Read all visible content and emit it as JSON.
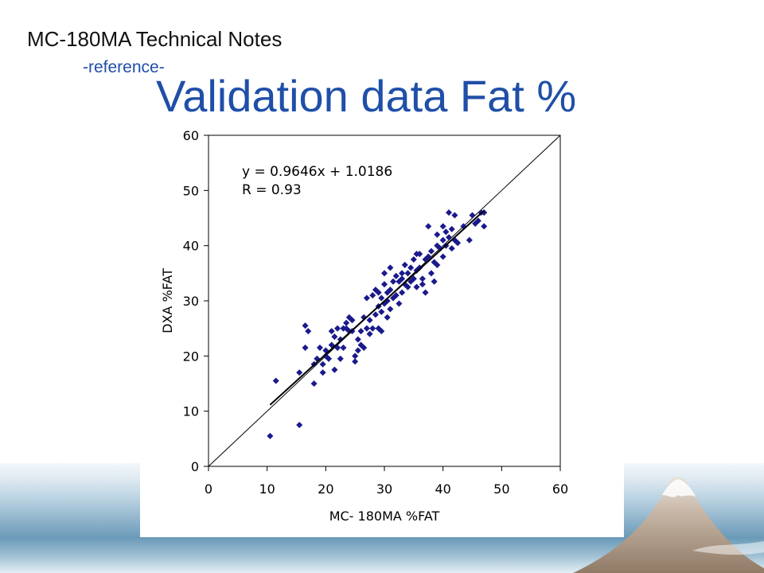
{
  "deck_title": "MC-180MA  Technical Notes",
  "deck_subtitle": "-reference-",
  "slide_title": "Validation data  Fat %",
  "colors": {
    "title_blue": "#1f4fa8",
    "marker": "#1a1a8c"
  },
  "chart_data": {
    "type": "scatter",
    "title": "",
    "xlabel": "MC- 180MA %FAT",
    "ylabel": "DXA %FAT",
    "xlim": [
      0,
      60
    ],
    "ylim": [
      0,
      60
    ],
    "xticks": [
      "0",
      "10",
      "20",
      "30",
      "40",
      "50",
      "60"
    ],
    "yticks": [
      "0",
      "10",
      "20",
      "30",
      "40",
      "50",
      "60"
    ],
    "grid": false,
    "annotations": [
      "y = 0.9646x + 1.0186",
      "R = 0.93"
    ],
    "trendline": {
      "slope": 0.9646,
      "intercept": 1.0186,
      "x_range": [
        10.5,
        47
      ]
    },
    "identity_line": {
      "from": [
        0,
        0
      ],
      "to": [
        60,
        60
      ]
    },
    "points": [
      [
        10.5,
        5.5
      ],
      [
        15.5,
        7.5
      ],
      [
        11.5,
        15.5
      ],
      [
        15.5,
        17
      ],
      [
        16.5,
        21.5
      ],
      [
        16.5,
        25.5
      ],
      [
        17,
        24.5
      ],
      [
        18,
        15
      ],
      [
        18,
        18.5
      ],
      [
        18.5,
        19.5
      ],
      [
        19,
        21.5
      ],
      [
        19.5,
        17
      ],
      [
        19.5,
        18.5
      ],
      [
        20,
        20
      ],
      [
        20,
        21
      ],
      [
        20.5,
        19.5
      ],
      [
        21,
        22
      ],
      [
        21,
        24.5
      ],
      [
        21.5,
        17.5
      ],
      [
        21.5,
        23.5
      ],
      [
        22,
        25
      ],
      [
        22,
        21.5
      ],
      [
        22.5,
        19.5
      ],
      [
        22.5,
        23
      ],
      [
        23,
        25
      ],
      [
        23,
        21.5
      ],
      [
        23.5,
        26
      ],
      [
        23.5,
        25
      ],
      [
        24,
        27
      ],
      [
        24,
        24.5
      ],
      [
        24.5,
        26.5
      ],
      [
        24.5,
        24.5
      ],
      [
        25,
        20
      ],
      [
        25,
        19
      ],
      [
        25.5,
        21
      ],
      [
        25.5,
        23
      ],
      [
        26,
        22
      ],
      [
        26,
        24.5
      ],
      [
        26.5,
        21.5
      ],
      [
        26.5,
        27
      ],
      [
        27,
        25
      ],
      [
        27,
        30.5
      ],
      [
        27.5,
        24
      ],
      [
        27.5,
        26.5
      ],
      [
        28,
        25
      ],
      [
        28,
        31
      ],
      [
        28.5,
        32
      ],
      [
        28.5,
        27.5
      ],
      [
        29,
        29
      ],
      [
        29,
        25
      ],
      [
        29,
        31.5
      ],
      [
        29.5,
        30.5
      ],
      [
        29.5,
        28
      ],
      [
        29.5,
        24.5
      ],
      [
        30,
        29.5
      ],
      [
        30,
        33
      ],
      [
        30,
        35
      ],
      [
        30.5,
        30
      ],
      [
        30.5,
        31.5
      ],
      [
        30.5,
        27
      ],
      [
        31,
        36
      ],
      [
        31,
        32
      ],
      [
        31,
        28.5
      ],
      [
        31.5,
        30.5
      ],
      [
        31.5,
        33.5
      ],
      [
        32,
        31
      ],
      [
        32,
        34.5
      ],
      [
        32.5,
        33.5
      ],
      [
        32.5,
        29.5
      ],
      [
        33,
        35
      ],
      [
        33,
        31.5
      ],
      [
        33,
        34
      ],
      [
        33.5,
        33
      ],
      [
        33.5,
        36.5
      ],
      [
        34,
        35
      ],
      [
        34,
        32.5
      ],
      [
        34.5,
        36
      ],
      [
        34.5,
        33.5
      ],
      [
        35,
        37.5
      ],
      [
        35,
        34
      ],
      [
        35.5,
        38.5
      ],
      [
        35.5,
        35.5
      ],
      [
        35.5,
        32.5
      ],
      [
        36,
        36
      ],
      [
        36,
        38.5
      ],
      [
        36.5,
        34
      ],
      [
        36.5,
        33
      ],
      [
        37,
        37.5
      ],
      [
        37,
        31.5
      ],
      [
        37.5,
        38
      ],
      [
        37.5,
        43.5
      ],
      [
        38,
        39
      ],
      [
        38,
        35
      ],
      [
        38.5,
        37
      ],
      [
        38.5,
        33.5
      ],
      [
        39,
        40
      ],
      [
        39,
        36.5
      ],
      [
        39,
        42
      ],
      [
        39.5,
        39.5
      ],
      [
        40,
        41
      ],
      [
        40,
        38
      ],
      [
        40,
        43.5
      ],
      [
        40.5,
        42.5
      ],
      [
        40.5,
        40
      ],
      [
        41,
        41.5
      ],
      [
        41,
        46
      ],
      [
        41.5,
        39.5
      ],
      [
        41.5,
        43
      ],
      [
        42,
        41
      ],
      [
        42,
        45.5
      ],
      [
        42.5,
        40.5
      ],
      [
        43.5,
        43.5
      ],
      [
        44.5,
        41
      ],
      [
        45,
        45.5
      ],
      [
        45.5,
        44
      ],
      [
        46,
        44.5
      ],
      [
        46.5,
        46
      ],
      [
        47,
        43.5
      ],
      [
        47,
        46
      ]
    ]
  }
}
